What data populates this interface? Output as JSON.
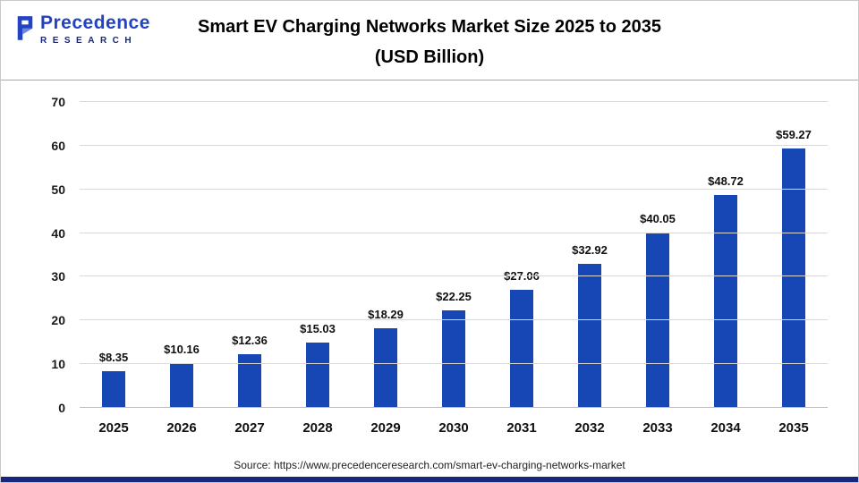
{
  "header": {
    "logo_line1": "Precedence",
    "logo_line2": "RESEARCH",
    "title_line1": "Smart EV Charging Networks Market Size 2025 to 2035",
    "title_line2": "(USD Billion)"
  },
  "chart_data": {
    "type": "bar",
    "title": "Smart EV Charging Networks Market Size 2025 to 2035 (USD Billion)",
    "categories": [
      "2025",
      "2026",
      "2027",
      "2028",
      "2029",
      "2030",
      "2031",
      "2032",
      "2033",
      "2034",
      "2035"
    ],
    "values": [
      8.35,
      10.16,
      12.36,
      15.03,
      18.29,
      22.25,
      27.06,
      32.92,
      40.05,
      48.72,
      59.27
    ],
    "value_labels": [
      "$8.35",
      "$10.16",
      "$12.36",
      "$15.03",
      "$18.29",
      "$22.25",
      "$27.06",
      "$32.92",
      "$40.05",
      "$48.72",
      "$59.27"
    ],
    "xlabel": "",
    "ylabel": "",
    "ylim": [
      0,
      70
    ],
    "ytick_step": 10,
    "ytick_labels": [
      "0",
      "10",
      "20",
      "30",
      "40",
      "50",
      "60",
      "70"
    ],
    "grid": "horizontal",
    "legend": "none",
    "bar_color": "#1747b5"
  },
  "footer": {
    "source": "Source: https://www.precedenceresearch.com/smart-ev-charging-networks-market"
  },
  "colors": {
    "bar": "#1747b5",
    "logo_blue": "#2343c3",
    "logo_navy": "#16277d",
    "gridline": "#d9d9d9",
    "bottom_strip": "#16277d"
  }
}
